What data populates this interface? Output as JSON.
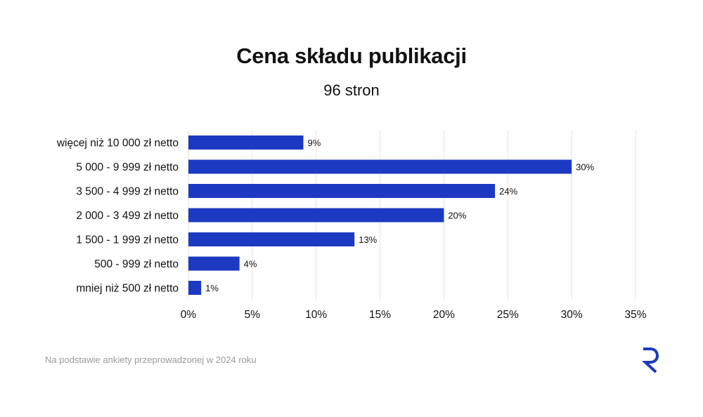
{
  "colors": {
    "bar": "#1c3ac1",
    "grid": "#e2e2e2",
    "text": "#111111",
    "footnote": "#9a9a9a",
    "logo": "#1c3ac1"
  },
  "logo": {
    "icon": "r-logo-icon"
  },
  "footnote": "Na podstawie ankiety przeprowadzonej w 2024 roku",
  "chart_data": {
    "type": "bar",
    "orientation": "horizontal",
    "title": "Cena składu publikacji",
    "subtitle": "96 stron",
    "categories": [
      "więcej niż 10 000 zł netto",
      "5 000 - 9 999 zł netto",
      "3 500 - 4 999 zł netto",
      "2 000 - 3 499 zł netto",
      "1 500 - 1 999 zł netto",
      "500 - 999 zł netto",
      "mniej niż 500 zł netto"
    ],
    "values": [
      9,
      30,
      24,
      20,
      13,
      4,
      1
    ],
    "value_labels": [
      "9%",
      "30%",
      "24%",
      "20%",
      "13%",
      "4%",
      "1%"
    ],
    "xlim": [
      0,
      35
    ],
    "xticks": [
      0,
      5,
      10,
      15,
      20,
      25,
      30,
      35
    ],
    "xtick_labels": [
      "0%",
      "5%",
      "10%",
      "15%",
      "20%",
      "25%",
      "30%",
      "35%"
    ],
    "grid": true,
    "legend": "none"
  }
}
